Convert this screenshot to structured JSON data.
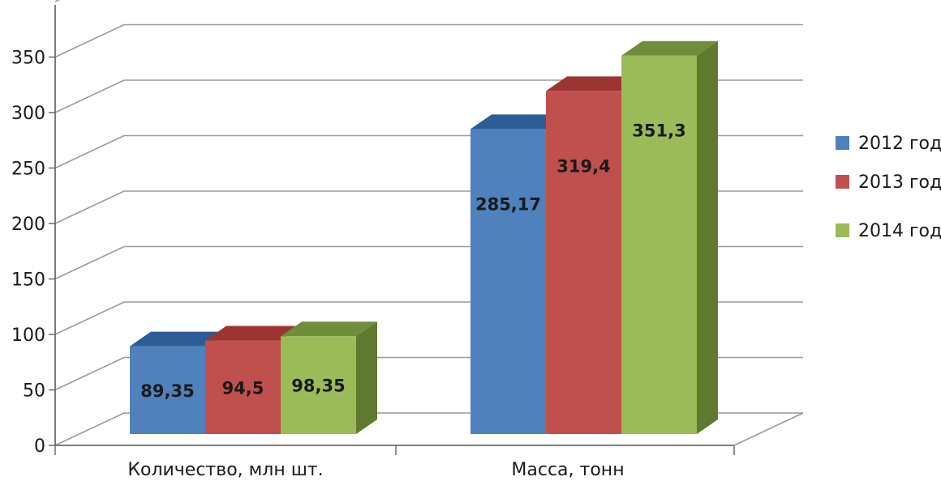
{
  "chart_data": {
    "type": "bar",
    "categories": [
      "Количество, млн шт.",
      "Масса, тонн"
    ],
    "series": [
      {
        "name": "2012 год",
        "values": [
          89.35,
          285.17
        ],
        "labels": [
          "89,35",
          "285,17"
        ],
        "color": "#4f81bd",
        "top_color": "#2e5d95",
        "side_color": "#2e5d95"
      },
      {
        "name": "2013 год",
        "values": [
          94.5,
          319.4
        ],
        "labels": [
          "94,5",
          "319,4"
        ],
        "color": "#c0504d",
        "top_color": "#9c3532",
        "side_color": "#9c3532"
      },
      {
        "name": "2014 год",
        "values": [
          98.35,
          351.3
        ],
        "labels": [
          "98,35",
          "351,3"
        ],
        "color": "#9bbb59",
        "top_color": "#6f8d3a",
        "side_color": "#5f7a30"
      }
    ],
    "y_ticks": [
      "0",
      "50",
      "100",
      "150",
      "200",
      "250",
      "300",
      "350"
    ],
    "ylim": [
      0,
      350
    ],
    "grid": true,
    "legend_position": "right",
    "style": "3d-clustered-column"
  }
}
